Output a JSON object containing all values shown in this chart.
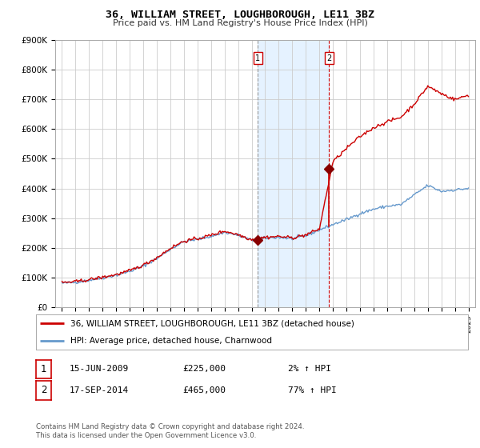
{
  "title": "36, WILLIAM STREET, LOUGHBOROUGH, LE11 3BZ",
  "subtitle": "Price paid vs. HM Land Registry's House Price Index (HPI)",
  "background_color": "#ffffff",
  "plot_bg_color": "#ffffff",
  "grid_color": "#cccccc",
  "hpi_line_color": "#6699cc",
  "price_line_color": "#cc0000",
  "sale1_date": 2009.45,
  "sale1_price": 225000,
  "sale2_date": 2014.71,
  "sale2_price": 465000,
  "shade_start": 2009.45,
  "shade_end": 2014.71,
  "ylim": [
    0,
    900000
  ],
  "xlim_start": 1994.5,
  "xlim_end": 2025.5,
  "yticks": [
    0,
    100000,
    200000,
    300000,
    400000,
    500000,
    600000,
    700000,
    800000,
    900000
  ],
  "ytick_labels": [
    "£0",
    "£100K",
    "£200K",
    "£300K",
    "£400K",
    "£500K",
    "£600K",
    "£700K",
    "£800K",
    "£900K"
  ],
  "xticks": [
    1995,
    1996,
    1997,
    1998,
    1999,
    2000,
    2001,
    2002,
    2003,
    2004,
    2005,
    2006,
    2007,
    2008,
    2009,
    2010,
    2011,
    2012,
    2013,
    2014,
    2015,
    2016,
    2017,
    2018,
    2019,
    2020,
    2021,
    2022,
    2023,
    2024,
    2025
  ],
  "legend_label1": "36, WILLIAM STREET, LOUGHBOROUGH, LE11 3BZ (detached house)",
  "legend_label2": "HPI: Average price, detached house, Charnwood",
  "footnote": "Contains HM Land Registry data © Crown copyright and database right 2024.\nThis data is licensed under the Open Government Licence v3.0.",
  "table_rows": [
    {
      "num": "1",
      "date": "15-JUN-2009",
      "price": "£225,000",
      "pct": "2% ↑ HPI"
    },
    {
      "num": "2",
      "date": "17-SEP-2014",
      "price": "£465,000",
      "pct": "77% ↑ HPI"
    }
  ],
  "hpi_anchors_x": [
    1995,
    1996,
    1997,
    1998,
    1999,
    2000,
    2001,
    2002,
    2003,
    2004,
    2005,
    2006,
    2007,
    2008,
    2009,
    2010,
    2011,
    2012,
    2013,
    2014,
    2015,
    2016,
    2017,
    2018,
    2019,
    2020,
    2021,
    2022,
    2023,
    2024,
    2025
  ],
  "hpi_anchors_y": [
    80000,
    83000,
    90000,
    98000,
    107000,
    120000,
    138000,
    163000,
    195000,
    220000,
    228000,
    238000,
    252000,
    242000,
    225000,
    232000,
    235000,
    230000,
    240000,
    260000,
    278000,
    295000,
    315000,
    330000,
    340000,
    345000,
    378000,
    410000,
    390000,
    395000,
    400000
  ],
  "price_anchors_x": [
    1995,
    1996,
    1997,
    1998,
    1999,
    2000,
    2001,
    2002,
    2003,
    2004,
    2005,
    2006,
    2007,
    2008,
    2009,
    2010,
    2011,
    2012,
    2013,
    2014,
    2015,
    2016,
    2017,
    2018,
    2019,
    2020,
    2021,
    2022,
    2023,
    2024,
    2025
  ],
  "price_anchors_y": [
    82000,
    85000,
    92000,
    100000,
    109000,
    122000,
    141000,
    166000,
    198000,
    222000,
    230000,
    242000,
    256000,
    244000,
    227000,
    235000,
    238000,
    233000,
    243000,
    263000,
    490000,
    535000,
    575000,
    605000,
    625000,
    640000,
    685000,
    745000,
    720000,
    700000,
    715000
  ]
}
